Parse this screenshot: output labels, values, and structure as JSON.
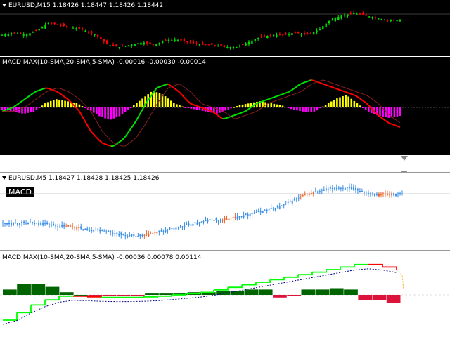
{
  "top": {
    "price_title": "EURUSD,M15  1.18426 1.18447 1.18426 1.18442",
    "macd_title": "MACD MAX(10-SMA,20-SMA,5-SMA) -0.00016 -0.00030 -0.00014",
    "colors": {
      "bg": "#000000",
      "bull": "#00e000",
      "bear": "#ff0000",
      "hist_up": "#ffff00",
      "hist_down": "#ff00ff"
    }
  },
  "bottom": {
    "price_title": "EURUSD,M5  1.18427 1.18428 1.18425 1.18426",
    "badge": "MACD",
    "macd_title": "MACD MAX(10-SMA,20-SMA,5-SMA) -0.00036 0.00078 0.00114",
    "colors": {
      "bg": "#ffffff",
      "bull": "#3a8ee6",
      "bear": "#e8642c",
      "hist_up": "#006400",
      "hist_down": "#dc143c",
      "line_up": "#00ff00",
      "line_down": "#ff0000",
      "signal": "#000080"
    }
  },
  "chart_data": [
    {
      "type": "line",
      "series": [
        {
          "values": [
            1.1838,
            1.1839,
            1.1838,
            1.184,
            1.1843,
            1.1842,
            1.1841,
            1.184,
            1.1838,
            1.1834,
            1.1833,
            1.1834,
            1.1835,
            1.1834,
            1.1836,
            1.1836,
            1.1835,
            1.1834,
            1.1834,
            1.1833,
            1.1833,
            1.1835,
            1.1837,
            1.1838,
            1.1838,
            1.1839,
            1.1838,
            1.184,
            1.1844,
            1.1846,
            1.1847,
            1.1846,
            1.1845,
            1.1844,
            1.1844
          ]
        }
      ]
    },
    {
      "type": "bar",
      "series": [
        {
          "values": [
            -0.5,
            -1,
            -1.5,
            -1,
            1,
            2,
            1.5,
            1,
            -0.5,
            -2,
            -3,
            -2,
            0,
            2,
            4,
            3,
            1,
            0,
            -0.5,
            -1,
            -1.5,
            -0.5,
            0.5,
            1,
            1.5,
            1,
            0.5,
            -0.5,
            -1,
            -1,
            0.5,
            2,
            3,
            1,
            -1,
            -2,
            -2.5,
            -2
          ]
        },
        {
          "values": [
            -1,
            0,
            2,
            4,
            5,
            4,
            2,
            -1,
            -6,
            -9,
            -10,
            -8,
            -4,
            1,
            5,
            6,
            4,
            1,
            0,
            -1,
            -3,
            -2,
            -1,
            1,
            2,
            3,
            4,
            6,
            7,
            6,
            5,
            4,
            3,
            1,
            -2,
            -4,
            -5
          ]
        }
      ]
    },
    {
      "type": "line",
      "series": [
        {
          "values": [
            1.1837,
            1.1837,
            1.1837,
            1.1837,
            1.1836,
            1.1836,
            1.1835,
            1.1835,
            1.1834,
            1.1833,
            1.1833,
            1.1834,
            1.1835,
            1.1836,
            1.1837,
            1.1838,
            1.1838,
            1.1839,
            1.184,
            1.1841,
            1.1842,
            1.1844,
            1.1846,
            1.1847,
            1.1848,
            1.1848,
            1.1847,
            1.1846,
            1.1846,
            1.1846
          ]
        }
      ]
    },
    {
      "type": "bar",
      "series": [
        {
          "values": [
            2,
            4,
            4,
            3,
            1,
            0,
            -0.5,
            -0.5,
            -0.5,
            -0.5,
            0.5,
            0.5,
            0.5,
            1,
            1,
            1.5,
            1.5,
            2,
            2,
            -1,
            -0.5,
            2,
            2,
            2.5,
            2,
            -2,
            -2,
            -3
          ]
        },
        {
          "values": [
            -10,
            -7,
            -4,
            -2,
            -0.5,
            -0.5,
            -0.8,
            -1,
            -1,
            -1,
            -0.8,
            -0.5,
            0,
            0.5,
            1,
            2,
            3,
            4,
            5,
            6,
            7,
            8,
            9,
            10,
            11,
            12,
            12,
            11,
            10
          ]
        }
      ]
    }
  ]
}
